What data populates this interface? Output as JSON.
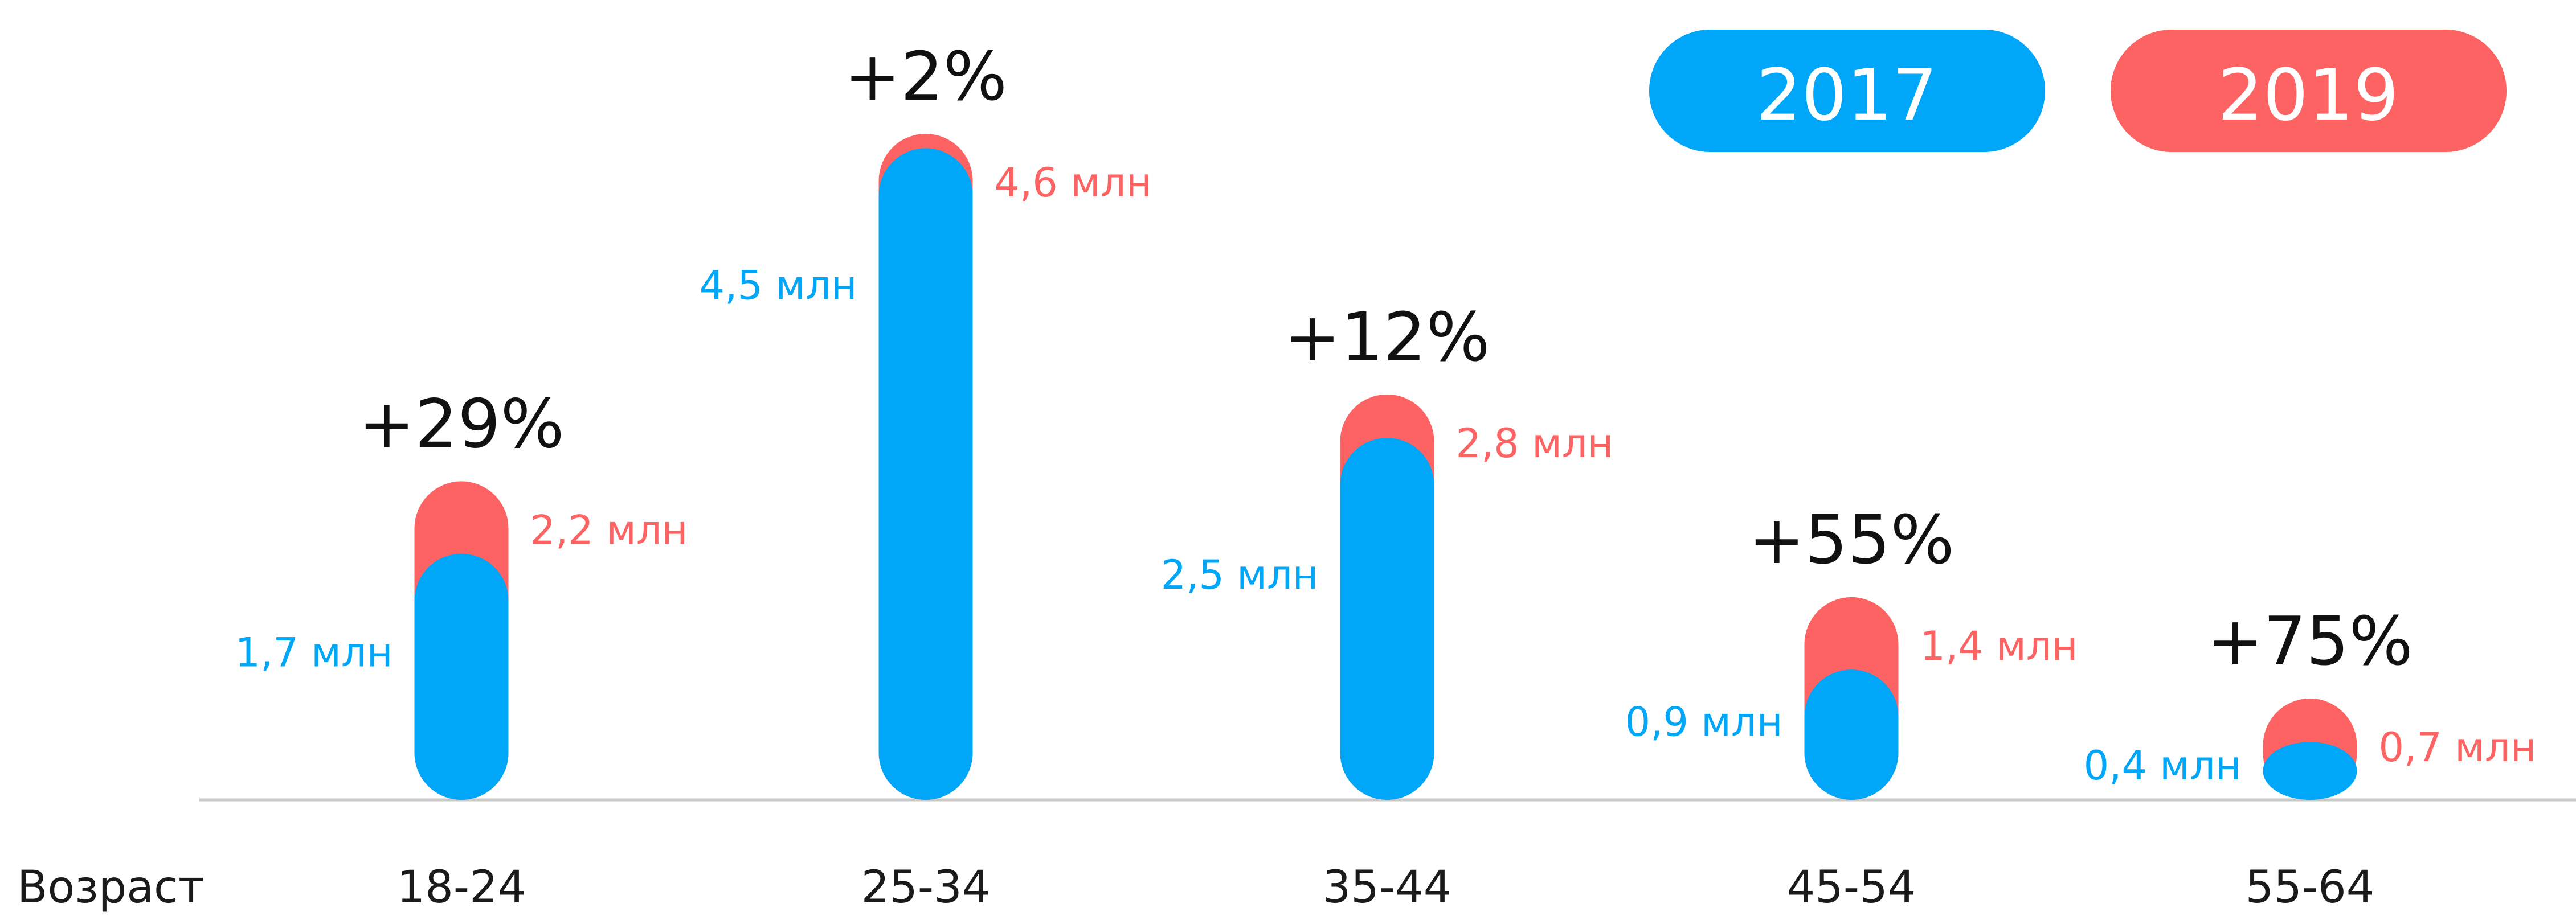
{
  "colors": {
    "series_2017": "#00a6f7",
    "series_2019": "#fe6363",
    "axis": "#c9c9c9",
    "text": "#111111"
  },
  "chart_data": {
    "type": "bar",
    "xlabel": "Возраст",
    "categories": [
      "18-24",
      "25-34",
      "35-44",
      "45-54",
      "55-64"
    ],
    "series": [
      {
        "name": "2017",
        "values": [
          1.7,
          4.5,
          2.5,
          0.9,
          0.4
        ],
        "labels": [
          "1,7 млн",
          "4,5 млн",
          "2,5 млн",
          "0,9 млн",
          "0,4 млн"
        ]
      },
      {
        "name": "2019",
        "values": [
          2.2,
          4.6,
          2.8,
          1.4,
          0.7
        ],
        "labels": [
          "2,2 млн",
          "4,6 млн",
          "2,8 млн",
          "1,4 млн",
          "0,7 млн"
        ]
      }
    ],
    "growth_labels": [
      "+29%",
      "+2%",
      "+12%",
      "+55%",
      "+75%"
    ],
    "ylim": [
      0,
      4.6
    ],
    "grid": false,
    "legend_position": "top-right"
  }
}
